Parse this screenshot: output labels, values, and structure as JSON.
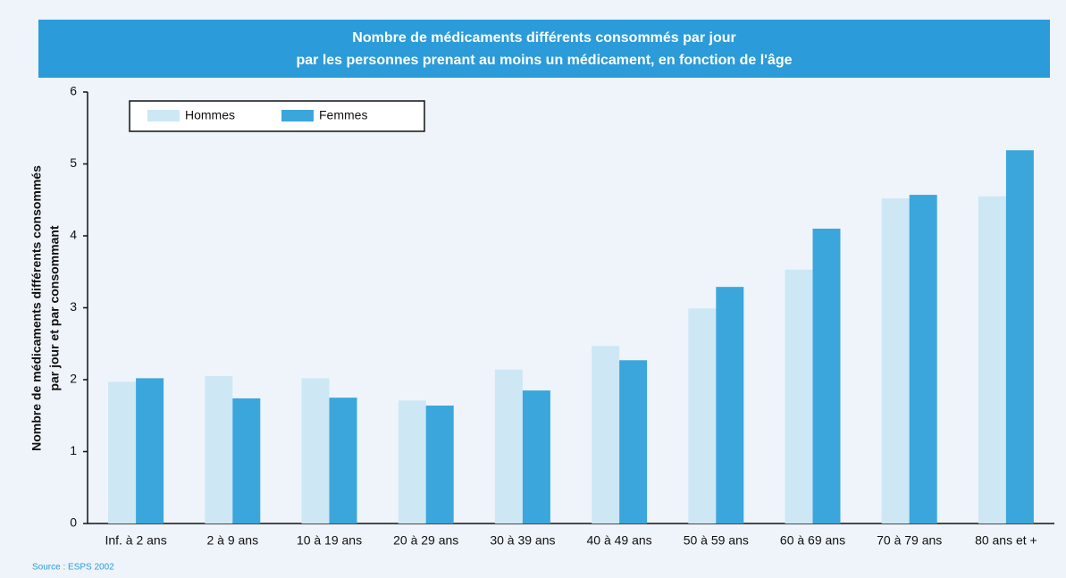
{
  "chart_data": {
    "type": "bar",
    "title": [
      "Nombre de médicaments différents consommés par jour",
      "par les personnes prenant au moins un médicament, en fonction de l'âge"
    ],
    "ylabel": [
      "Nombre de médicaments différents consommés",
      "par jour et par consommant"
    ],
    "categories": [
      "Inf. à 2 ans",
      "2 à 9 ans",
      "10 à 19 ans",
      "20 à 29 ans",
      "30 à 39 ans",
      "40 à 49 ans",
      "50 à 59 ans",
      "60 à 69 ans",
      "70 à 79 ans",
      "80 ans et +"
    ],
    "series": [
      {
        "name": "Hommes",
        "color": "#cde7f5",
        "values": [
          1.97,
          2.05,
          2.02,
          1.71,
          2.14,
          2.47,
          2.99,
          3.53,
          4.52,
          4.55
        ]
      },
      {
        "name": "Femmes",
        "color": "#3ba6dc",
        "values": [
          2.02,
          1.74,
          1.75,
          1.64,
          1.85,
          2.27,
          3.29,
          4.1,
          4.57,
          5.19
        ]
      }
    ],
    "ylim": [
      0,
      6
    ],
    "yticks": [
      0,
      1,
      2,
      3,
      4,
      5,
      6
    ],
    "grid": false,
    "source": "Source : ESPS 2002"
  }
}
